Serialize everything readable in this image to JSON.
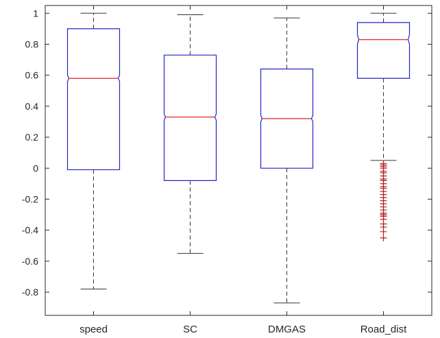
{
  "chart_data": {
    "type": "boxplot",
    "notched": true,
    "categories": [
      "speed",
      "SC",
      "DMGAS",
      "Road_dist"
    ],
    "boxes": [
      {
        "name": "speed",
        "whisker_low": -0.78,
        "q1": -0.01,
        "median": 0.58,
        "q3": 0.9,
        "whisker_high": 1.0,
        "notch_low": 0.56,
        "notch_high": 0.6,
        "outliers": []
      },
      {
        "name": "SC",
        "whisker_low": -0.55,
        "q1": -0.08,
        "median": 0.33,
        "q3": 0.73,
        "whisker_high": 0.99,
        "notch_low": 0.31,
        "notch_high": 0.35,
        "outliers": []
      },
      {
        "name": "DMGAS",
        "whisker_low": -0.87,
        "q1": 0.0,
        "median": 0.32,
        "q3": 0.64,
        "whisker_high": 0.97,
        "notch_low": 0.3,
        "notch_high": 0.34,
        "outliers": []
      },
      {
        "name": "Road_dist",
        "whisker_low": 0.05,
        "q1": 0.58,
        "median": 0.83,
        "q3": 0.94,
        "whisker_high": 1.0,
        "notch_low": 0.8,
        "notch_high": 0.86,
        "outliers": [
          0.03,
          0.02,
          0.01,
          0.0,
          -0.02,
          -0.03,
          -0.05,
          -0.07,
          -0.08,
          -0.1,
          -0.12,
          -0.13,
          -0.15,
          -0.17,
          -0.19,
          -0.21,
          -0.23,
          -0.25,
          -0.27,
          -0.29,
          -0.3,
          -0.31,
          -0.33,
          -0.36,
          -0.38,
          -0.41,
          -0.45
        ]
      }
    ],
    "yticks": [
      -0.8,
      -0.6,
      -0.4,
      -0.2,
      0,
      0.2,
      0.4,
      0.6,
      0.8,
      1
    ],
    "yticklabels": [
      "-0.8",
      "-0.6",
      "-0.4",
      "-0.2",
      "0",
      "0.2",
      "0.4",
      "0.6",
      "0.8",
      "1"
    ],
    "ylim": [
      -0.95,
      1.05
    ],
    "title": "",
    "xlabel": "",
    "ylabel": "",
    "grid": false,
    "colors": {
      "box": "#2323c8",
      "median": "#e02020",
      "whisker": "#333333",
      "outlier": "#b22222",
      "axis": "#262626"
    }
  }
}
